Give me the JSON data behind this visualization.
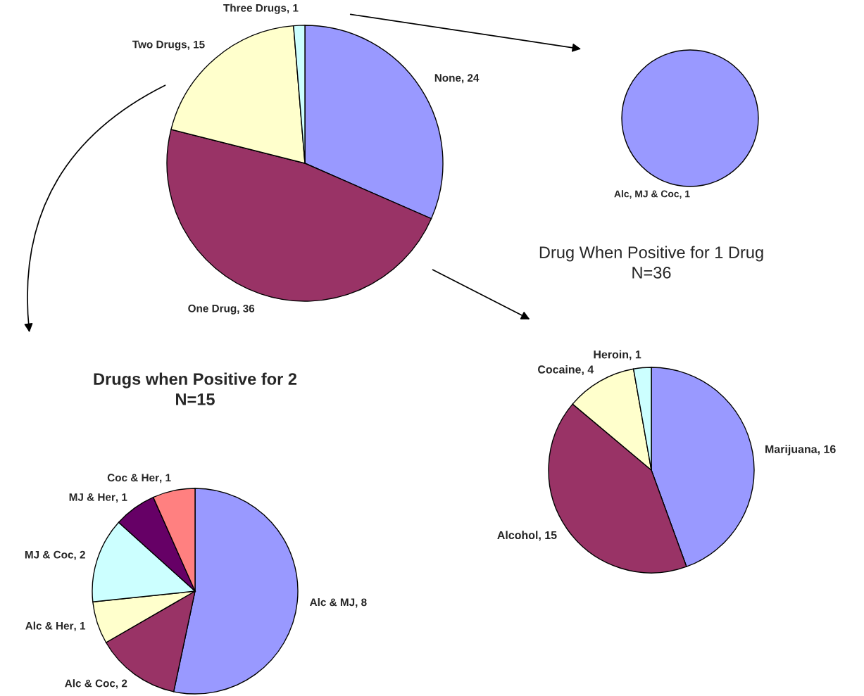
{
  "chart_data": [
    {
      "type": "pie",
      "categories": [
        "None",
        "One Drug",
        "Two Drugs",
        "Three Drugs"
      ],
      "values": [
        24,
        36,
        15,
        1
      ],
      "colors": [
        "#9999ff",
        "#993366",
        "#ffffcc",
        "#ccffff"
      ],
      "value_labels": [
        ", 24",
        ", 36",
        ", 15",
        ", 1"
      ]
    },
    {
      "type": "pie",
      "categories": [
        "Alc, MJ & Coc"
      ],
      "values": [
        1
      ],
      "colors": [
        "#9999ff"
      ],
      "value_labels": [
        ", 1"
      ]
    },
    {
      "type": "pie",
      "title": "Drugs when Positive for 2\nN=15",
      "categories": [
        "Alc & MJ",
        "Alc & Coc",
        "Alc & Her",
        "MJ & Coc",
        "MJ & Her",
        "Coc & Her"
      ],
      "values": [
        8,
        2,
        1,
        2,
        1,
        1
      ],
      "colors": [
        "#9999ff",
        "#993366",
        "#ffffcc",
        "#ccffff",
        "#660066",
        "#ff8080"
      ],
      "value_labels": [
        ", 8",
        ", 2",
        ", 1",
        ", 2",
        ", 1",
        ", 1"
      ]
    },
    {
      "type": "pie",
      "title": "Drug When Positive for 1 Drug\nN=36",
      "categories": [
        "Marijuana",
        "Alcohol",
        "Cocaine",
        "Heroin"
      ],
      "values": [
        16,
        15,
        4,
        1
      ],
      "colors": [
        "#9999ff",
        "#993366",
        "#ffffcc",
        "#ccffff"
      ],
      "value_labels": [
        ", 16",
        ", 15",
        ", 4",
        ", 1"
      ]
    }
  ]
}
